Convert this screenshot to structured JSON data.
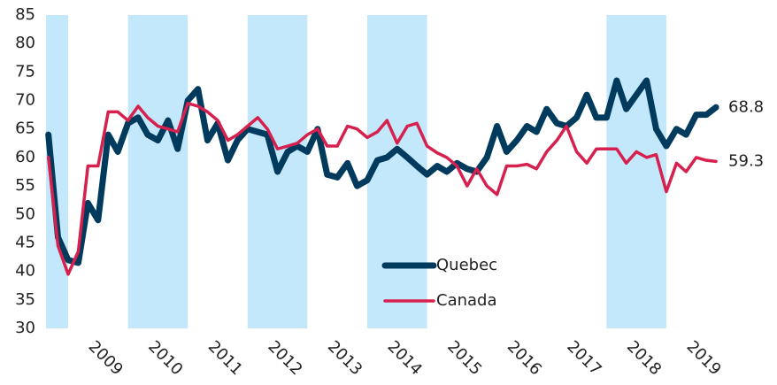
{
  "chart_data": {
    "type": "line",
    "x": [
      2008.67,
      2008.83,
      2009.0,
      2009.17,
      2009.33,
      2009.5,
      2009.67,
      2009.83,
      2010.0,
      2010.17,
      2010.33,
      2010.5,
      2010.67,
      2010.83,
      2011.0,
      2011.17,
      2011.33,
      2011.5,
      2011.67,
      2011.83,
      2012.0,
      2012.17,
      2012.33,
      2012.5,
      2012.67,
      2012.83,
      2013.0,
      2013.17,
      2013.33,
      2013.5,
      2013.67,
      2013.83,
      2014.0,
      2014.17,
      2014.33,
      2014.5,
      2014.67,
      2014.83,
      2015.0,
      2015.17,
      2015.33,
      2015.5,
      2015.67,
      2015.83,
      2016.0,
      2016.17,
      2016.33,
      2016.5,
      2016.67,
      2016.83,
      2017.0,
      2017.17,
      2017.33,
      2017.5,
      2017.67,
      2017.83,
      2018.0,
      2018.17,
      2018.33,
      2018.5,
      2018.67,
      2018.83,
      2019.0,
      2019.17,
      2019.33,
      2019.5,
      2019.67,
      2019.83
    ],
    "series": [
      {
        "name": "Quebec",
        "color": "#003a5d",
        "width": 7,
        "values": [
          64,
          46,
          42,
          41.5,
          52,
          49,
          64,
          61,
          66,
          67,
          64,
          63,
          66.5,
          61.5,
          70,
          72,
          63,
          66,
          59.5,
          63,
          65,
          64.5,
          64,
          57.5,
          61,
          62,
          61,
          65,
          57,
          56.5,
          59,
          55,
          56,
          59.5,
          60,
          61.5,
          60,
          58.5,
          57,
          58.5,
          57.5,
          59,
          58,
          57.5,
          60,
          65.5,
          61,
          63,
          65.5,
          64.5,
          68.5,
          66,
          65.5,
          67,
          71,
          67,
          67,
          73.5,
          68.5,
          71,
          73.5,
          65,
          62,
          65,
          64,
          67.5,
          67.5,
          68.8
        ]
      },
      {
        "name": "Canada",
        "color": "#d6204e",
        "width": 3.5,
        "values": [
          60,
          44.5,
          39.5,
          43.5,
          58.5,
          58.5,
          68,
          68,
          66.5,
          69,
          67,
          65.5,
          65,
          64.5,
          69.5,
          69,
          68,
          66.5,
          63,
          64,
          65.5,
          67,
          65,
          61.5,
          62,
          62.5,
          64,
          65,
          62,
          62,
          65.5,
          65,
          63.5,
          64.5,
          66.5,
          62.5,
          65.5,
          66,
          62,
          60.8,
          60,
          58.5,
          55,
          58,
          55,
          53.5,
          58.5,
          58.5,
          58.8,
          58,
          61,
          63,
          65.5,
          61,
          59,
          61.5,
          61.5,
          61.5,
          59,
          61,
          60,
          60.5,
          54,
          59,
          57.5,
          60,
          59.5,
          59.3
        ]
      }
    ],
    "xlim": [
      2008.63,
      2020.85
    ],
    "xticks": [
      {
        "value": 2009,
        "label": "2009"
      },
      {
        "value": 2010,
        "label": "2010"
      },
      {
        "value": 2011,
        "label": "2011"
      },
      {
        "value": 2012,
        "label": "2012"
      },
      {
        "value": 2013,
        "label": "2013"
      },
      {
        "value": 2014,
        "label": "2014"
      },
      {
        "value": 2015,
        "label": "2015"
      },
      {
        "value": 2016,
        "label": "2016"
      },
      {
        "value": 2017,
        "label": "2017"
      },
      {
        "value": 2018,
        "label": "2018"
      },
      {
        "value": 2019,
        "label": "2019"
      }
    ],
    "ylim": [
      30,
      85
    ],
    "yticks": [
      30,
      35,
      40,
      45,
      50,
      55,
      60,
      65,
      70,
      75,
      80,
      85
    ],
    "shaded": [
      [
        2008.63,
        2009
      ],
      [
        2010,
        2011
      ],
      [
        2012,
        2013
      ],
      [
        2014,
        2015
      ],
      [
        2018,
        2019
      ]
    ],
    "shade_color": "#c4e8fb",
    "legend": "lower center",
    "grid": false
  }
}
